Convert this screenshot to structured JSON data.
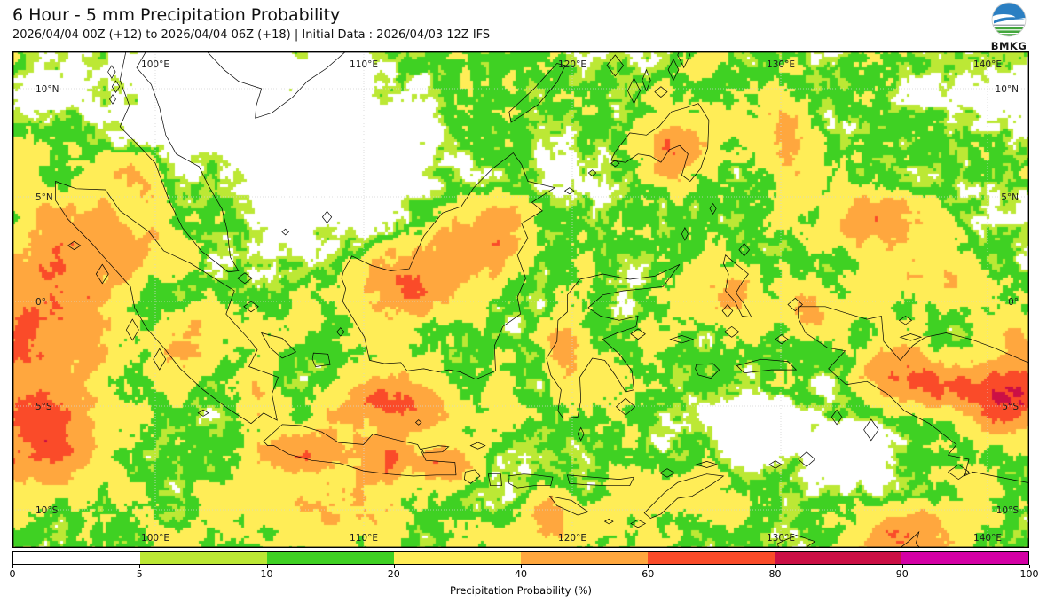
{
  "header": {
    "title": "6 Hour - 5 mm Precipitation Probability",
    "subtitle": "2026/04/04 00Z (+12) to 2026/04/04 06Z (+18) | Initial Data : 2026/04/03 12Z IFS"
  },
  "logo": {
    "label": "BMKG",
    "sky_color": "#2b7fc2",
    "land_color": "#43a63d"
  },
  "map": {
    "lon_labels": [
      "100°E",
      "110°E",
      "120°E",
      "130°E",
      "140°E"
    ],
    "lat_labels": [
      "10°N",
      "5°N",
      "0°",
      "5°S",
      "10°S"
    ],
    "grid_color": "#d4d4d4",
    "coast_color": "#000000"
  },
  "colorbar": {
    "label": "Precipitation Probability (%)",
    "ticks": [
      "0",
      "5",
      "10",
      "20",
      "40",
      "60",
      "80",
      "90",
      "100"
    ],
    "levels": [
      0,
      5,
      10,
      20,
      40,
      60,
      80,
      90,
      100
    ],
    "colors": [
      "#ffffff",
      "#bce835",
      "#3fd123",
      "#ffed57",
      "#ffa73e",
      "#fa4b29",
      "#cb0f45",
      "#d400a5"
    ]
  }
}
